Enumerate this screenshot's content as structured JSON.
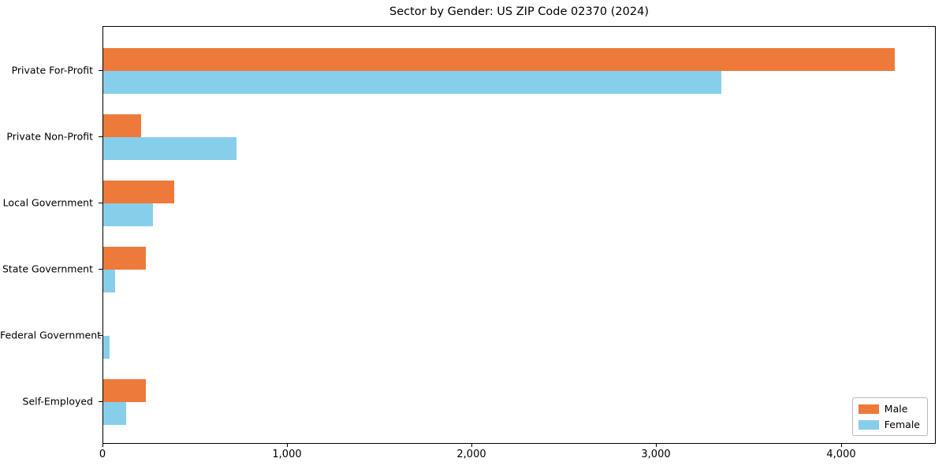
{
  "chart_data": {
    "type": "bar",
    "orientation": "horizontal",
    "title": "Sector by Gender: US ZIP Code 02370 (2024)",
    "categories": [
      "Private For-Profit",
      "Private Non-Profit",
      "Local Government",
      "State Government",
      "Federal Government",
      "Self-Employed"
    ],
    "series": [
      {
        "name": "Male",
        "color": "#ED7A3B",
        "values": [
          4290,
          205,
          385,
          230,
          0,
          230
        ]
      },
      {
        "name": "Female",
        "color": "#87CEEB",
        "values": [
          3350,
          720,
          270,
          65,
          35,
          125
        ]
      }
    ],
    "xlabel": "",
    "ylabel": "",
    "xlim": [
      0,
      4510
    ],
    "xticks": [
      0,
      1000,
      2000,
      3000,
      4000
    ],
    "xtick_labels": [
      "0",
      "1,000",
      "2,000",
      "3,000",
      "4,000"
    ],
    "grid": false,
    "legend": {
      "position": "lower right",
      "entries": [
        "Male",
        "Female"
      ]
    },
    "colors": {
      "background": "#ffffff",
      "spine": "#000000",
      "text": "#000000"
    }
  }
}
